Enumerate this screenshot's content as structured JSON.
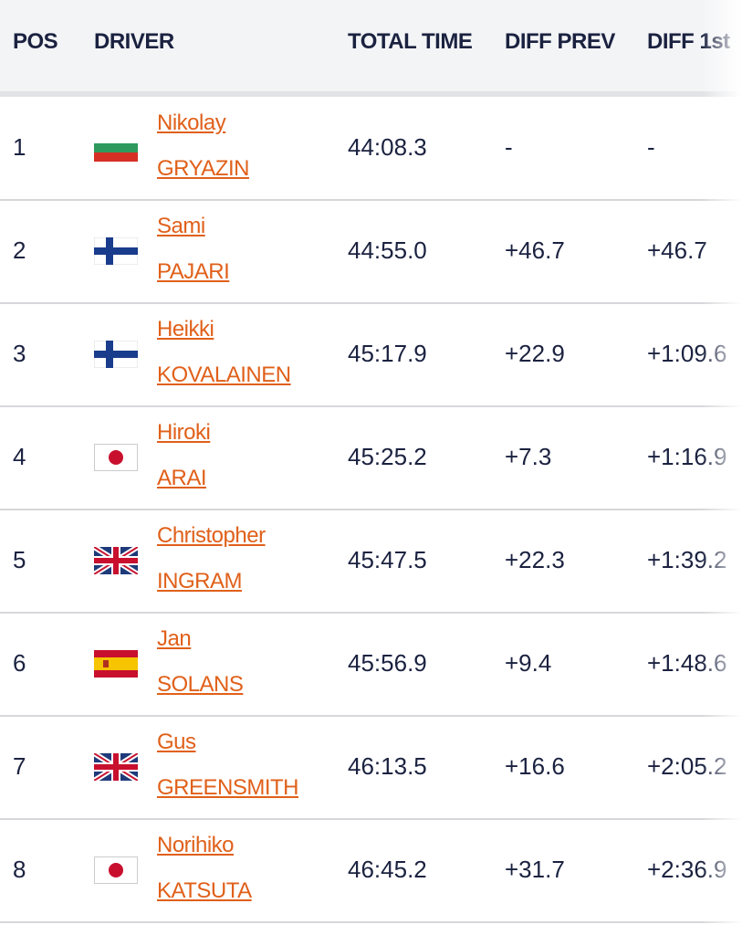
{
  "header": {
    "columns": [
      "POS",
      "DRIVER",
      "TOTAL TIME",
      "DIFF PREV",
      "DIFF 1st"
    ]
  },
  "rows": [
    {
      "pos": 1,
      "first_name": "Nikolay",
      "last_name": "GRYAZIN",
      "total_time": "44:08.3",
      "diff_prev": "-",
      "diff_first": "-"
    },
    {
      "pos": 2,
      "first_name": "Sami",
      "last_name": "PAJARI",
      "total_time": "44:55.0",
      "diff_prev": "+46.7",
      "diff_first": "+46.7"
    },
    {
      "pos": 3,
      "first_name": "Heikki",
      "last_name": "KOVALAINEN",
      "total_time": "45:17.9",
      "diff_prev": "+22.9",
      "diff_first": "+1:09.6"
    },
    {
      "pos": 4,
      "first_name": "Hiroki",
      "last_name": "ARAI",
      "total_time": "45:25.2",
      "diff_prev": "+7.3",
      "diff_first": "+1:16.9"
    },
    {
      "pos": 5,
      "first_name": "Christopher",
      "last_name": "INGRAM",
      "total_time": "45:47.5",
      "diff_prev": "+22.3",
      "diff_first": "+1:39.2"
    },
    {
      "pos": 6,
      "first_name": "Jan",
      "last_name": "SOLANS",
      "total_time": "45:56.9",
      "diff_prev": "+9.4",
      "diff_first": "+1:48.6"
    },
    {
      "pos": 7,
      "first_name": "Gus",
      "last_name": "GREENSMITH",
      "total_time": "46:13.5",
      "diff_prev": "+16.6",
      "diff_first": "+2:05.2"
    },
    {
      "pos": 8,
      "first_name": "Norihiko",
      "last_name": "KATSUTA",
      "total_time": "46:45.2",
      "diff_prev": "+31.7",
      "diff_first": "+2:36.9"
    }
  ]
}
